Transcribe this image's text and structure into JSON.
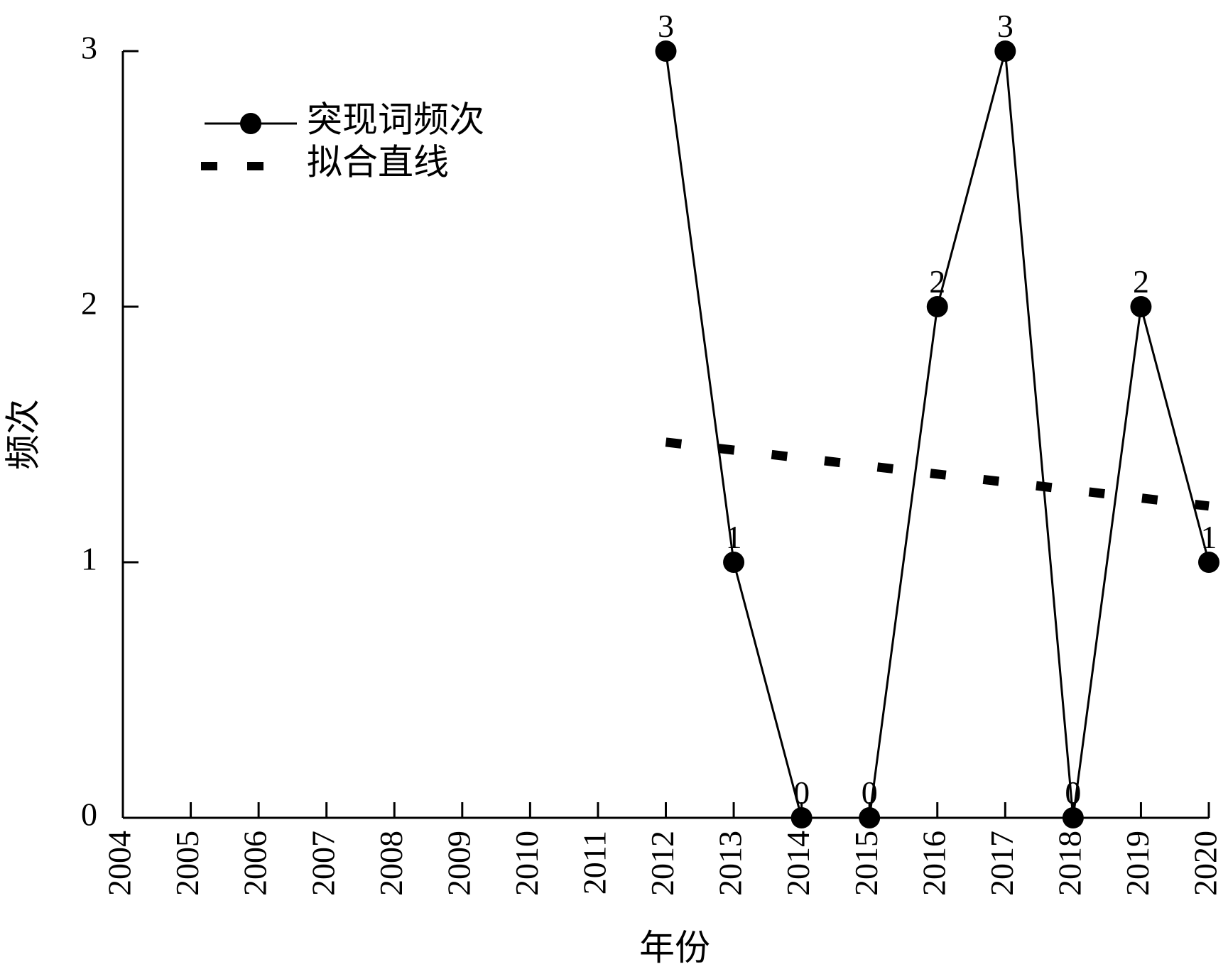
{
  "chart_data": {
    "type": "line",
    "xlabel": "年份",
    "ylabel": "频次",
    "categories": [
      "2004",
      "2005",
      "2006",
      "2007",
      "2008",
      "2009",
      "2010",
      "2011",
      "2012",
      "2013",
      "2014",
      "2015",
      "2016",
      "2017",
      "2018",
      "2019",
      "2020"
    ],
    "ylim": [
      0,
      3
    ],
    "y_ticks": [
      "0",
      "1",
      "2",
      "3"
    ],
    "grid": false,
    "legend_position": "top-left",
    "series": [
      {
        "name": "突现词频次",
        "style": "solid line with filled circle markers",
        "color": "#000000",
        "x": [
          "2012",
          "2013",
          "2014",
          "2015",
          "2016",
          "2017",
          "2018",
          "2019",
          "2020"
        ],
        "values": [
          3,
          1,
          0,
          0,
          2,
          3,
          0,
          2,
          1
        ],
        "data_labels": [
          "3",
          "1",
          "0",
          "0",
          "2",
          "3",
          "0",
          "2",
          "1"
        ]
      },
      {
        "name": "拟合直线",
        "style": "thick dashed line",
        "color": "#000000",
        "x": [
          "2012",
          "2020"
        ],
        "values": [
          1.47,
          1.22
        ]
      }
    ]
  }
}
